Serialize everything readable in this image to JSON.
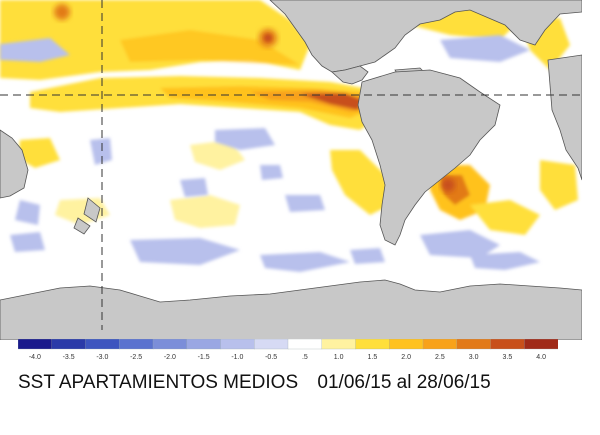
{
  "caption": {
    "title": "SST APARTAMIENTOS MEDIOS",
    "dates": "01/06/15 al 28/06/15"
  },
  "legend": {
    "labels": [
      "-4.0",
      "-3.5",
      "-3.0",
      "-2.5",
      "-2.0",
      "-1.5",
      "-1.0",
      "-0.5",
      ".5",
      "1.0",
      "1.5",
      "2.0",
      "2.5",
      "3.0",
      "3.5",
      "4.0"
    ],
    "colors": [
      "#1a1a8c",
      "#2a3aa8",
      "#3d55bf",
      "#5a72cf",
      "#7b8ed9",
      "#9aa7e3",
      "#b8c0ec",
      "#d6daf4",
      "#ffffff",
      "#fff2a0",
      "#ffdf3b",
      "#ffc21f",
      "#f8a21a",
      "#e27a18",
      "#c8501a",
      "#a02a18"
    ]
  },
  "map": {
    "land_color": "#c8c8c8",
    "ocean_color": "#ffffff",
    "ref_line_color": "#333333"
  }
}
